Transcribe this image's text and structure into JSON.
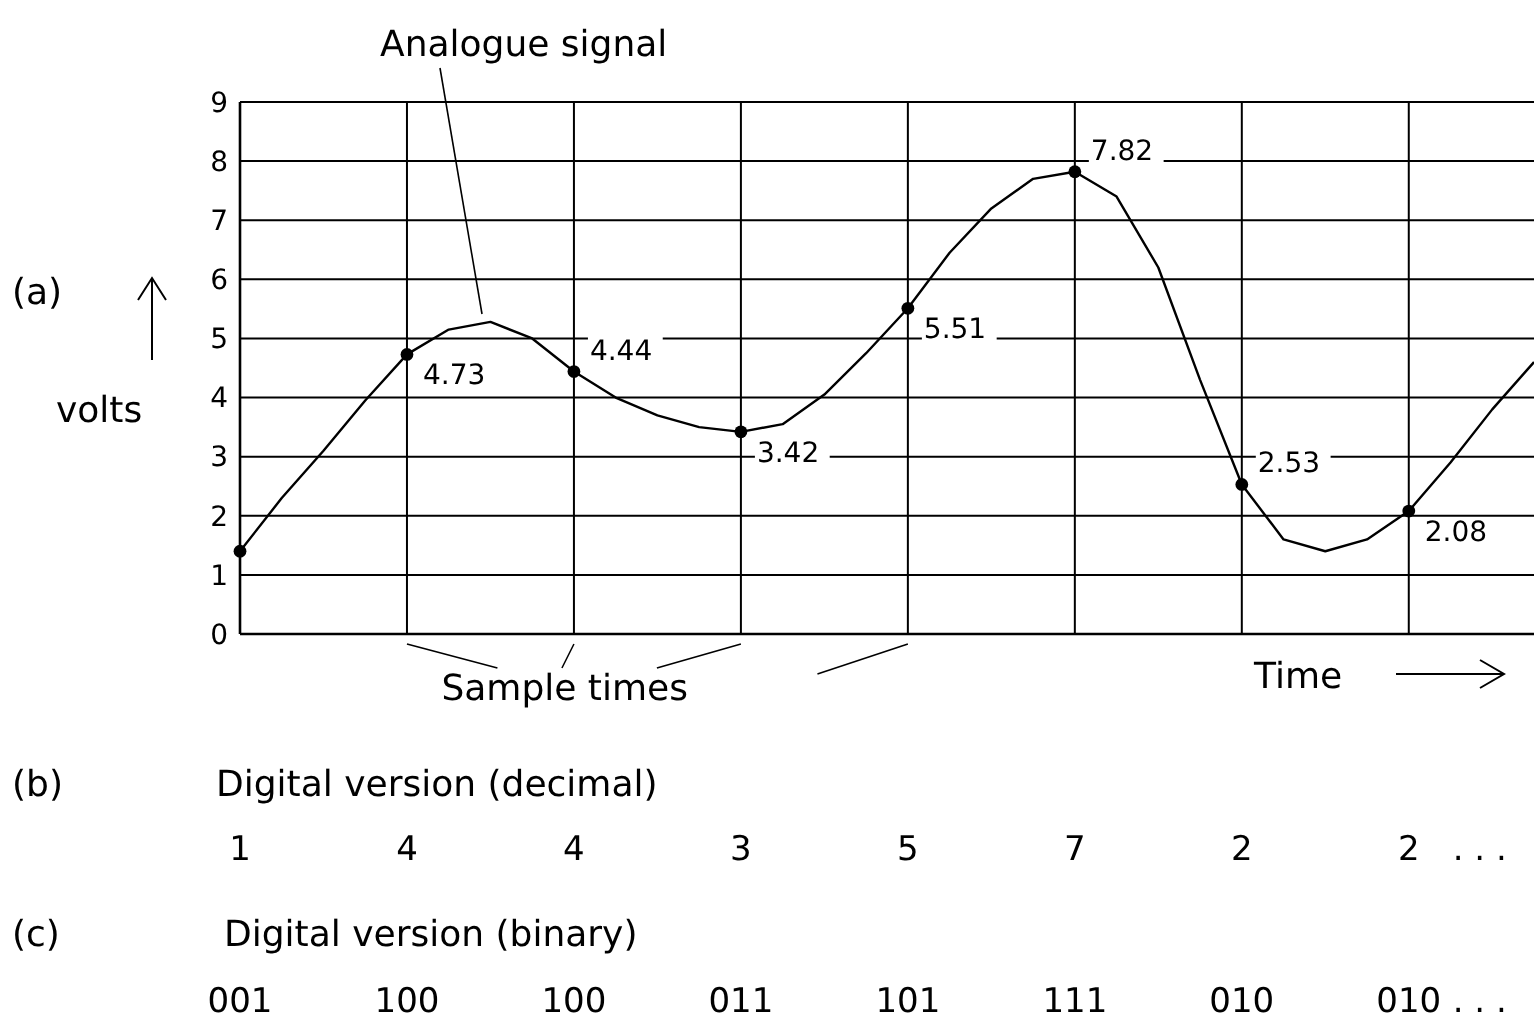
{
  "chart_data": {
    "type": "line",
    "xlabel": "Time",
    "ylabel": "volts",
    "ylim": [
      0,
      9
    ],
    "categories": [
      null,
      null,
      null,
      null,
      null,
      null,
      null,
      null,
      null,
      null,
      null,
      null,
      null,
      null,
      null,
      null,
      null,
      null,
      null,
      null,
      null,
      null,
      null,
      null,
      null,
      null,
      null,
      null,
      null,
      null,
      null,
      null
    ],
    "yticks": [
      0,
      1,
      2,
      3,
      4,
      5,
      6,
      7,
      8,
      9
    ],
    "grid": true,
    "series": [
      {
        "color": "#000000",
        "marker": "none",
        "values": [
          1.4,
          2.3,
          3.1,
          3.95,
          4.73,
          5.15,
          5.28,
          5.0,
          4.44,
          4.0,
          3.7,
          3.5,
          3.42,
          3.55,
          4.05,
          4.75,
          5.51,
          6.45,
          7.2,
          7.7,
          7.82,
          7.4,
          6.2,
          4.3,
          2.53,
          1.6,
          1.4,
          1.6,
          2.08,
          2.9,
          3.8,
          4.6
        ]
      },
      {
        "type": "scatter",
        "color": "#000000",
        "marker": "circle",
        "values": [
          1.4,
          null,
          null,
          null,
          4.73,
          null,
          null,
          null,
          4.44,
          null,
          null,
          null,
          3.42,
          null,
          null,
          null,
          5.51,
          null,
          null,
          null,
          7.82,
          null,
          null,
          null,
          2.53,
          null,
          null,
          null,
          2.08,
          null,
          null,
          null
        ],
        "value_labels": [
          null,
          null,
          null,
          null,
          "4.73",
          null,
          null,
          null,
          "4.44",
          null,
          null,
          null,
          "3.42",
          null,
          null,
          null,
          "5.51",
          null,
          null,
          null,
          "7.82",
          null,
          null,
          null,
          "2.53",
          null,
          null,
          null,
          "2.08",
          null,
          null,
          null
        ]
      }
    ],
    "annotations": [
      "(a)",
      "Analogue signal",
      "Sample times",
      "(b)",
      "Digital version (decimal)",
      "1 4 4 3 5 7 2 2 . . .",
      "(c)",
      "Digital version (binary)",
      "001 100 100 011 101 111 010 010 . . ."
    ]
  }
}
